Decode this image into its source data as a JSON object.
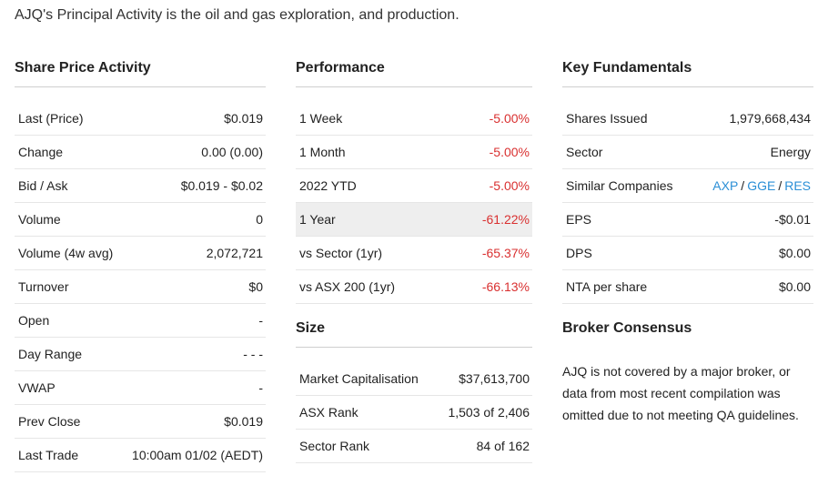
{
  "intro": "AJQ's Principal Activity is the oil and gas exploration, and production.",
  "share_price": {
    "title": "Share Price Activity",
    "rows": [
      {
        "label": "Last (Price)",
        "value": "$0.019"
      },
      {
        "label": "Change",
        "value": "0.00 (0.00)"
      },
      {
        "label": "Bid / Ask",
        "value": "$0.019 - $0.02"
      },
      {
        "label": "Volume",
        "value": "0"
      },
      {
        "label": "Volume (4w avg)",
        "value": "2,072,721"
      },
      {
        "label": "Turnover",
        "value": "$0"
      },
      {
        "label": "Open",
        "value": "-"
      },
      {
        "label": "Day Range",
        "value": "- - -"
      },
      {
        "label": "VWAP",
        "value": "-"
      },
      {
        "label": "Prev Close",
        "value": "$0.019"
      },
      {
        "label": "Last Trade",
        "value": "10:00am 01/02 (AEDT)"
      }
    ]
  },
  "performance": {
    "title": "Performance",
    "rows": [
      {
        "label": "1 Week",
        "value": "-5.00%"
      },
      {
        "label": "1 Month",
        "value": "-5.00%"
      },
      {
        "label": "2022 YTD",
        "value": "-5.00%"
      },
      {
        "label": "1 Year",
        "value": "-61.22%"
      },
      {
        "label": "vs Sector (1yr)",
        "value": "-65.37%"
      },
      {
        "label": "vs ASX 200 (1yr)",
        "value": "-66.13%"
      }
    ],
    "negative_color": "#d93030"
  },
  "size": {
    "title": "Size",
    "rows": [
      {
        "label": "Market Capitalisation",
        "value": "$37,613,700"
      },
      {
        "label": "ASX Rank",
        "value": "1,503 of 2,406"
      },
      {
        "label": "Sector Rank",
        "value": "84 of 162"
      }
    ]
  },
  "fundamentals": {
    "title": "Key Fundamentals",
    "rows": [
      {
        "label": "Shares Issued",
        "value": "1,979,668,434"
      },
      {
        "label": "Sector",
        "value": "Energy"
      },
      {
        "label": "Similar Companies",
        "links": [
          "AXP",
          "GGE",
          "RES"
        ],
        "separator": "/"
      },
      {
        "label": "EPS",
        "value": "-$0.01"
      },
      {
        "label": "DPS",
        "value": "$0.00"
      },
      {
        "label": "NTA per share",
        "value": "$0.00"
      }
    ],
    "link_color": "#2b8fd6"
  },
  "broker": {
    "title": "Broker Consensus",
    "text": "AJQ is not covered by a major broker, or data from most recent compilation was omitted due to not meeting QA guidelines."
  }
}
